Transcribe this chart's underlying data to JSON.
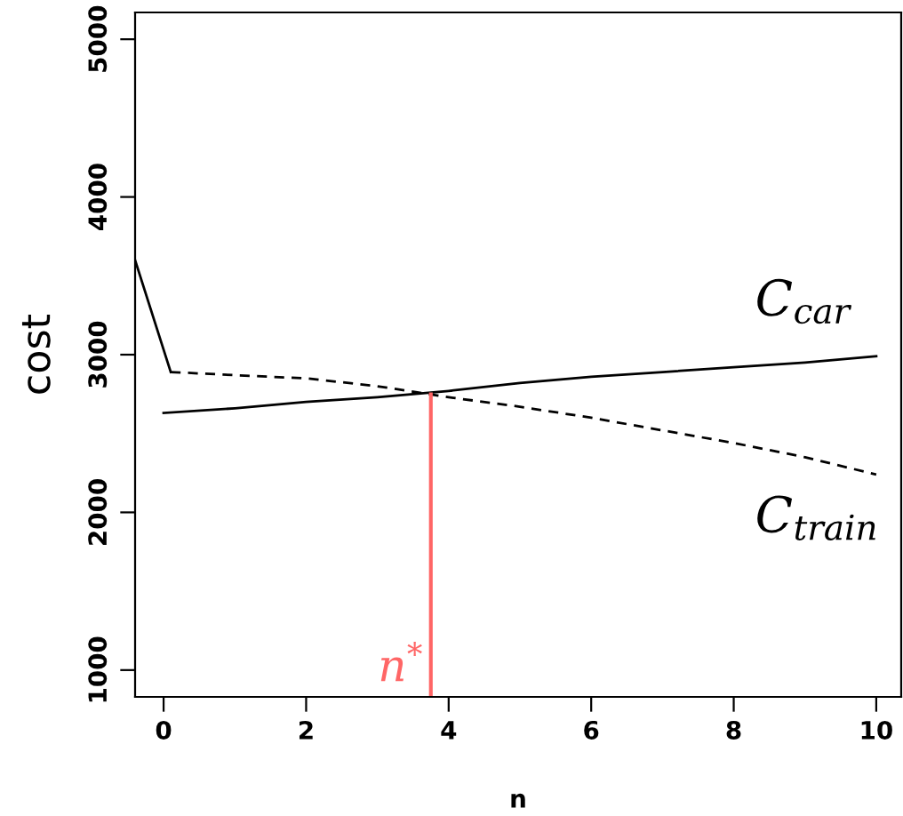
{
  "chart_data": {
    "type": "line",
    "xlabel": "n",
    "ylabel": "cost",
    "xlim": [
      -0.4,
      10.35
    ],
    "ylim": [
      830,
      5170
    ],
    "xticks": [
      0,
      2,
      4,
      6,
      8,
      10
    ],
    "yticks": [
      1000,
      2000,
      3000,
      4000,
      5000
    ],
    "grid": false,
    "legend": false,
    "marker": "none",
    "series": [
      {
        "name": "C$_{car}$",
        "color": "#000000",
        "line_style": "solid",
        "x": [
          0,
          1,
          2,
          3,
          4,
          5,
          6,
          7,
          8,
          9,
          10
        ],
        "values": [
          2630,
          2660,
          2700,
          2730,
          2770,
          2820,
          2860,
          2890,
          2920,
          2950,
          2990
        ]
      },
      {
        "name": "C$_{train}$",
        "color": "#000000",
        "line_style": "dashed",
        "x": [
          0.1,
          1,
          2,
          3,
          4,
          5,
          6,
          7,
          8,
          9,
          10
        ],
        "values": [
          2890,
          2870,
          2850,
          2800,
          2730,
          2670,
          2600,
          2520,
          2440,
          2350,
          2240
        ]
      },
      {
        "color": "#000000",
        "line_style": "solid",
        "x": [
          -0.4,
          0.1
        ],
        "values": [
          3600,
          2890
        ]
      }
    ],
    "ref_lines": [
      {
        "axis": "x",
        "value": 3.75,
        "label": "n$^{*}$",
        "color": "#ff6666",
        "line_style": "solid"
      }
    ]
  }
}
